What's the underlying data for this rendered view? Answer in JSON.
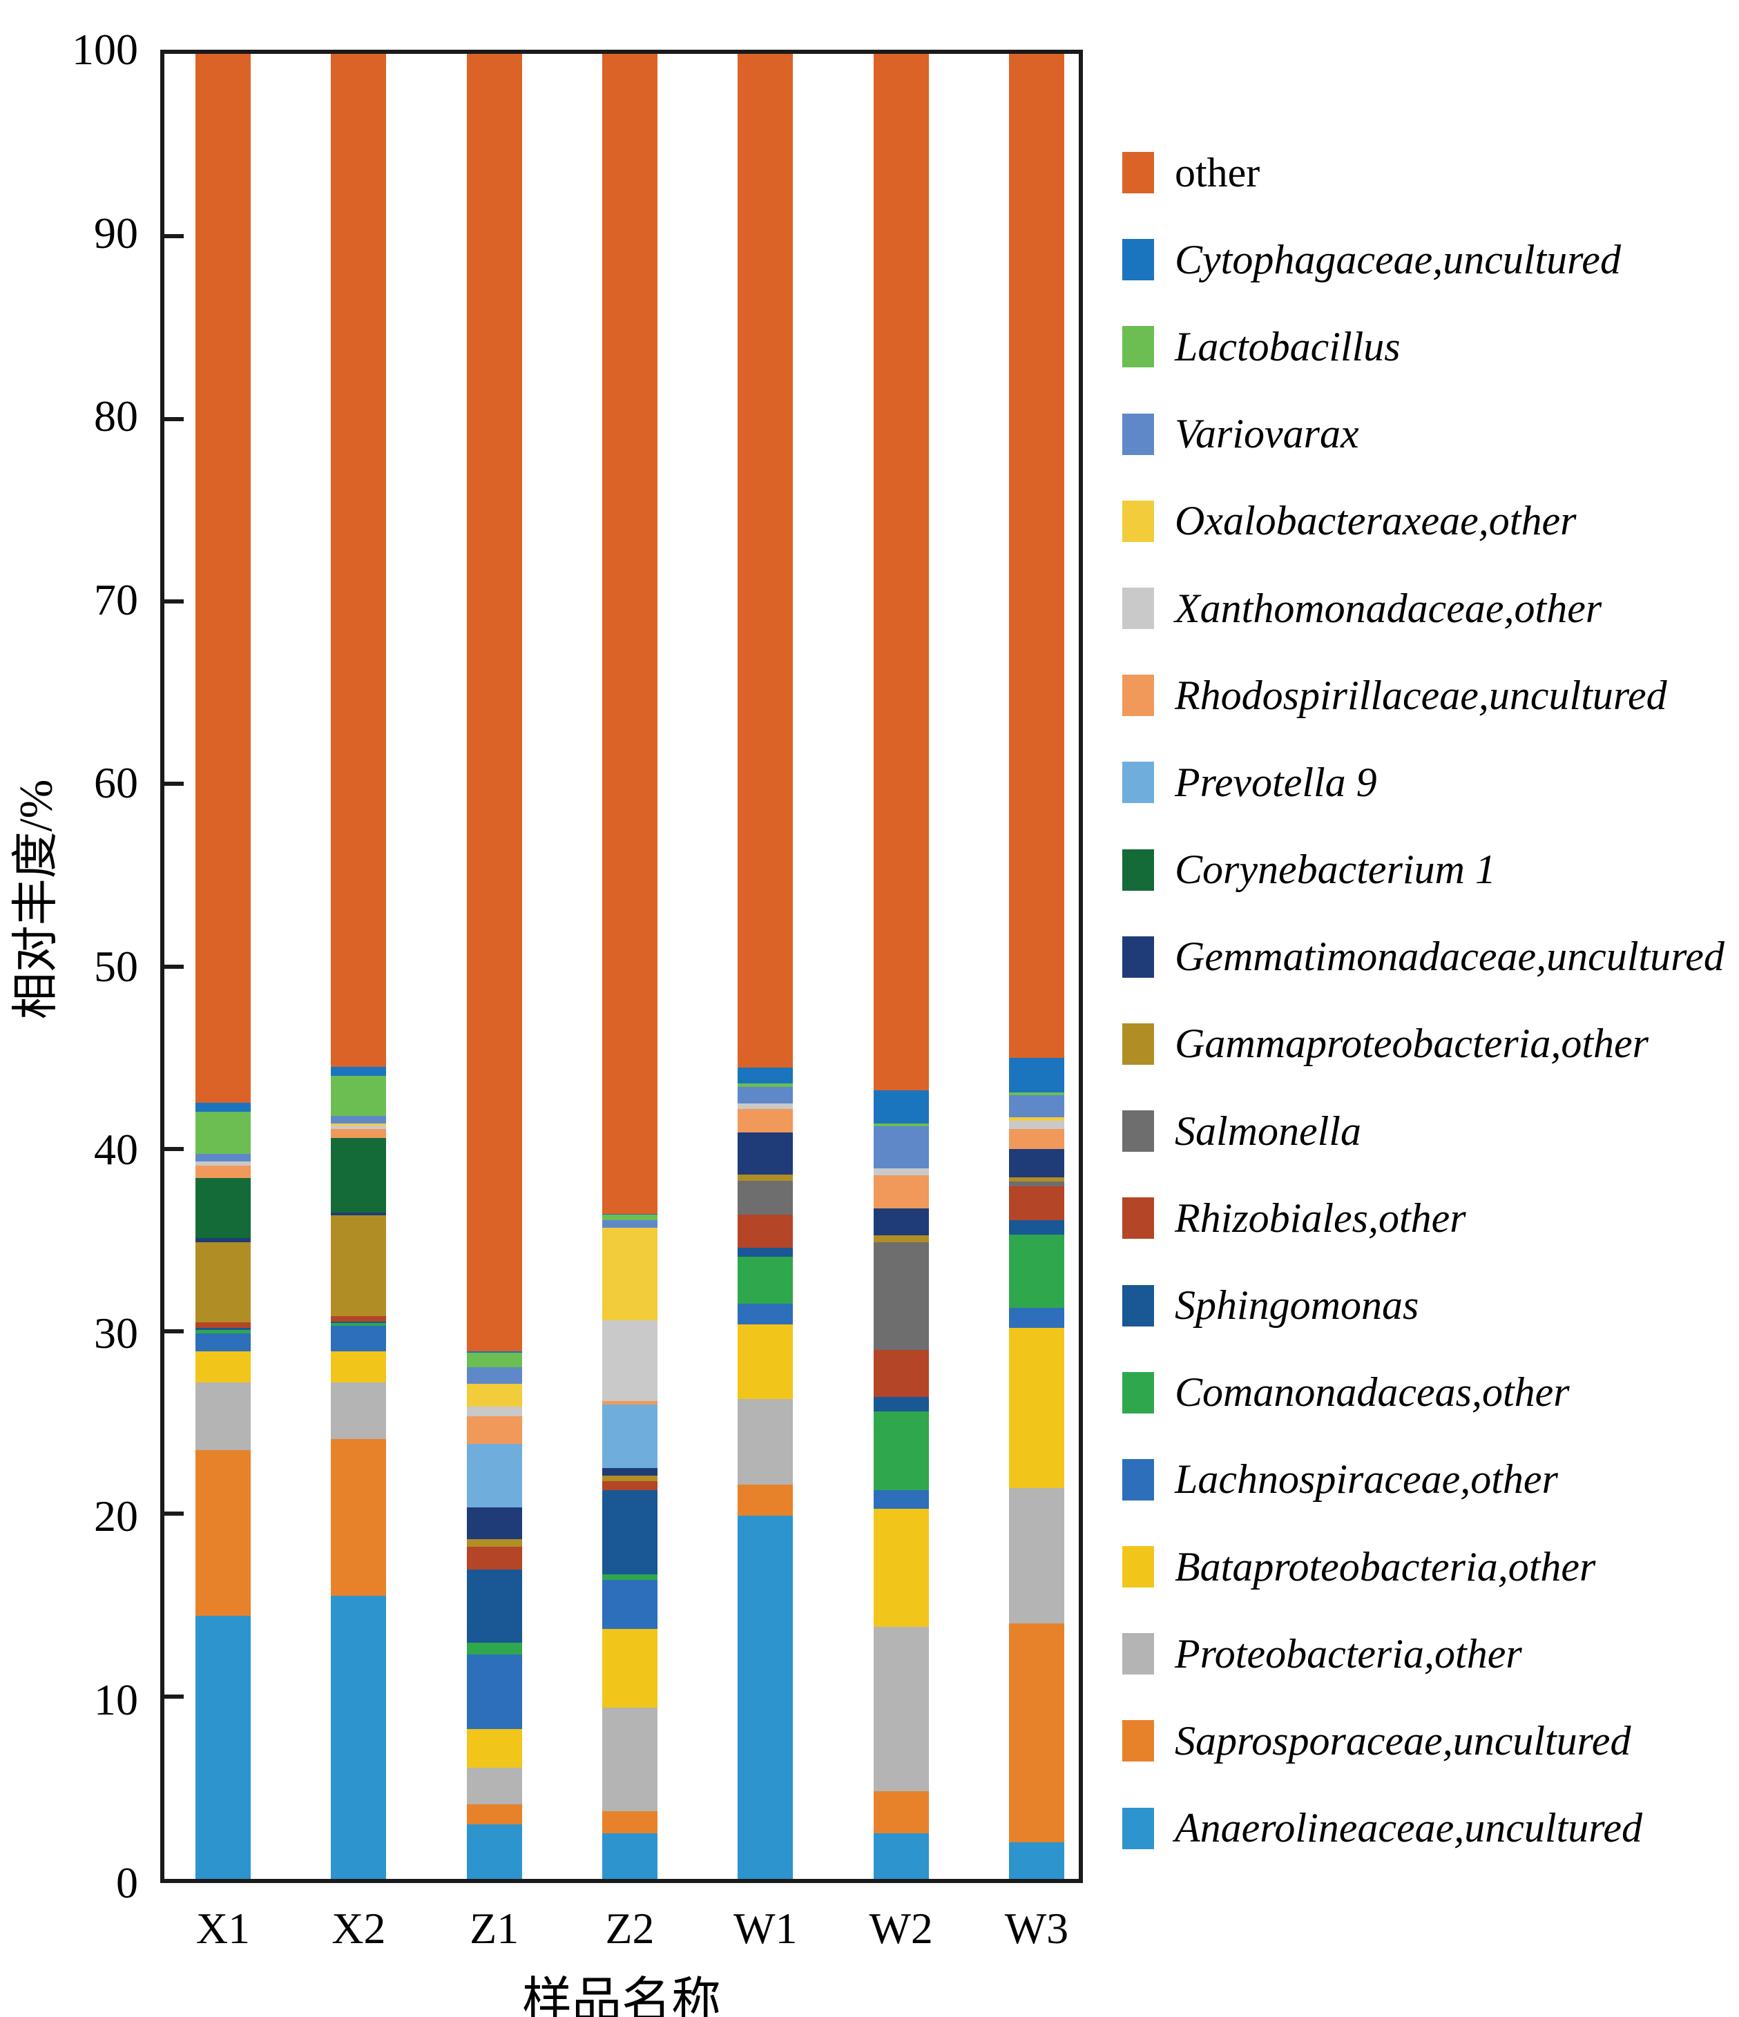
{
  "chart_data": {
    "type": "bar",
    "stacked": true,
    "title": "",
    "xlabel": "样品名称",
    "ylabel": "相对丰度/%",
    "ylim": [
      0,
      100
    ],
    "yticks": [
      0,
      10,
      20,
      30,
      40,
      50,
      60,
      70,
      80,
      90,
      100
    ],
    "grid": false,
    "legend_position": "right",
    "axis_color": "#1a1a1a",
    "categories": [
      "X1",
      "X2",
      "Z1",
      "Z2",
      "W1",
      "W2",
      "W3"
    ],
    "series_note": "listed bottom-to-top of stack; legend shows reverse order",
    "series": [
      {
        "name": "Anaerolineaceae,uncultured",
        "color": "#2D94CE",
        "values": [
          14.4,
          15.5,
          3.0,
          2.5,
          19.9,
          2.5,
          2.0
        ]
      },
      {
        "name": "Saprosporaceae,uncultured",
        "color": "#E8822A",
        "values": [
          9.1,
          8.6,
          1.1,
          1.2,
          1.7,
          2.3,
          12.0
        ]
      },
      {
        "name": "Proteobacteria,other",
        "color": "#B4B4B4",
        "values": [
          3.7,
          3.1,
          2.0,
          5.7,
          4.7,
          9.0,
          7.4
        ]
      },
      {
        "name": "Bataproteobacteria,other",
        "color": "#F2C51B",
        "values": [
          1.7,
          1.7,
          2.1,
          4.3,
          4.1,
          6.5,
          8.8
        ]
      },
      {
        "name": "Lachnospiraceae,other",
        "color": "#2D6FBA",
        "values": [
          1.0,
          1.4,
          4.1,
          2.7,
          1.1,
          1.0,
          1.1
        ]
      },
      {
        "name": "Comanonadaceas,other",
        "color": "#2FA84D",
        "values": [
          0.2,
          0.15,
          0.65,
          0.3,
          2.6,
          4.3,
          4.0
        ]
      },
      {
        "name": "Sphingomonas",
        "color": "#1A5795",
        "values": [
          0.1,
          0.1,
          4.0,
          4.6,
          0.5,
          0.8,
          0.8
        ]
      },
      {
        "name": "Rhizobiales,other",
        "color": "#B54527",
        "values": [
          0.3,
          0.3,
          1.25,
          0.5,
          1.8,
          2.6,
          1.85
        ]
      },
      {
        "name": "Salmonella",
        "color": "#6E6E6E",
        "values": [
          0,
          0,
          0,
          0,
          1.85,
          5.9,
          0.25
        ]
      },
      {
        "name": "Gammaproteobacteria,other",
        "color": "#B08E25",
        "values": [
          4.4,
          5.5,
          0.4,
          0.3,
          0.35,
          0.35,
          0.25
        ]
      },
      {
        "name": "Gemmatimonadaceae,uncultured",
        "color": "#1F3C78",
        "values": [
          0.2,
          0.15,
          1.75,
          0.4,
          2.3,
          1.5,
          1.55
        ]
      },
      {
        "name": "Corynebacterium 1",
        "color": "#156B38",
        "values": [
          3.3,
          4.1,
          0,
          0,
          0,
          0,
          0
        ]
      },
      {
        "name": "Prevotella 9",
        "color": "#6FAEDC",
        "values": [
          0,
          0,
          3.5,
          3.5,
          0,
          0,
          0
        ]
      },
      {
        "name": "Rhodospirillaceae,uncultured",
        "color": "#F0995A",
        "values": [
          0.7,
          0.5,
          1.5,
          0.2,
          1.3,
          1.8,
          1.1
        ]
      },
      {
        "name": "Xanthomonadaceae,other",
        "color": "#C9C9C9",
        "values": [
          0.2,
          0.2,
          0.55,
          4.4,
          0.3,
          0.4,
          0.45
        ]
      },
      {
        "name": "Oxalobacteraxeae,other",
        "color": "#F2CC3A",
        "values": [
          0,
          0.1,
          1.25,
          5.1,
          0,
          0,
          0.2
        ]
      },
      {
        "name": "Variovarax",
        "color": "#5F88C8",
        "values": [
          0.45,
          0.4,
          0.9,
          0.4,
          0.9,
          2.3,
          1.2
        ]
      },
      {
        "name": "Lactobacillus",
        "color": "#6CBE53",
        "values": [
          2.3,
          2.2,
          0.8,
          0.3,
          0.2,
          0.15,
          0.15
        ]
      },
      {
        "name": "Cytophagaceae,uncultured",
        "color": "#1B74BE",
        "values": [
          0.5,
          0.5,
          0.05,
          0.05,
          0.85,
          1.8,
          1.9
        ]
      },
      {
        "name": "other",
        "color": "#DC6327",
        "values": [
          57.45,
          55.5,
          71.1,
          63.55,
          55.55,
          56.8,
          55.0
        ]
      }
    ]
  }
}
